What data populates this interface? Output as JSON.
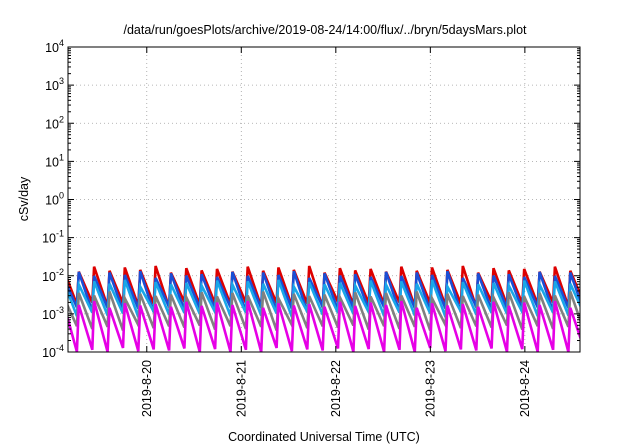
{
  "chart_data": {
    "type": "line",
    "title": "/data/run/goesPlots/archive/2019-08-24/14:00/flux/../bryn/5daysMars.plot",
    "xlabel": "Coordinated Universal Time (UTC)",
    "ylabel": "cSv/day",
    "yscale": "log",
    "ylim": [
      0.0001,
      10000
    ],
    "y_ticks": [
      {
        "value": 0.0001,
        "base": "10",
        "exp": "-4"
      },
      {
        "value": 0.001,
        "base": "10",
        "exp": "-3"
      },
      {
        "value": 0.01,
        "base": "10",
        "exp": "-2"
      },
      {
        "value": 0.1,
        "base": "10",
        "exp": "-1"
      },
      {
        "value": 1,
        "base": "10",
        "exp": "0"
      },
      {
        "value": 10,
        "base": "10",
        "exp": "1"
      },
      {
        "value": 100,
        "base": "10",
        "exp": "2"
      },
      {
        "value": 1000,
        "base": "10",
        "exp": "3"
      },
      {
        "value": 10000,
        "base": "10",
        "exp": "4"
      }
    ],
    "xlim": [
      "2019-08-19T04:00",
      "2019-08-24T14:00"
    ],
    "x_ticks": [
      {
        "value": "2019-08-20T00:00",
        "label": "2019-8-20"
      },
      {
        "value": "2019-08-21T00:00",
        "label": "2019-8-21"
      },
      {
        "value": "2019-08-22T00:00",
        "label": "2019-8-22"
      },
      {
        "value": "2019-08-23T00:00",
        "label": "2019-8-23"
      },
      {
        "value": "2019-08-24T00:00",
        "label": "2019-8-24"
      }
    ],
    "grid": true,
    "series": [
      {
        "color": "#dd0000",
        "base_low": 0.0016,
        "base_high": 0.015
      },
      {
        "color": "#1a4fd6",
        "base_low": 0.0012,
        "base_high": 0.011
      },
      {
        "color": "#19a7e8",
        "base_low": 0.0009,
        "base_high": 0.0065
      },
      {
        "color": "#808080",
        "base_low": 0.0004,
        "base_high": 0.0032
      },
      {
        "color": "#e600e6",
        "base_low": 0.0001,
        "base_high": 0.0018
      }
    ],
    "sawtooth_period_hours": 3.9
  }
}
